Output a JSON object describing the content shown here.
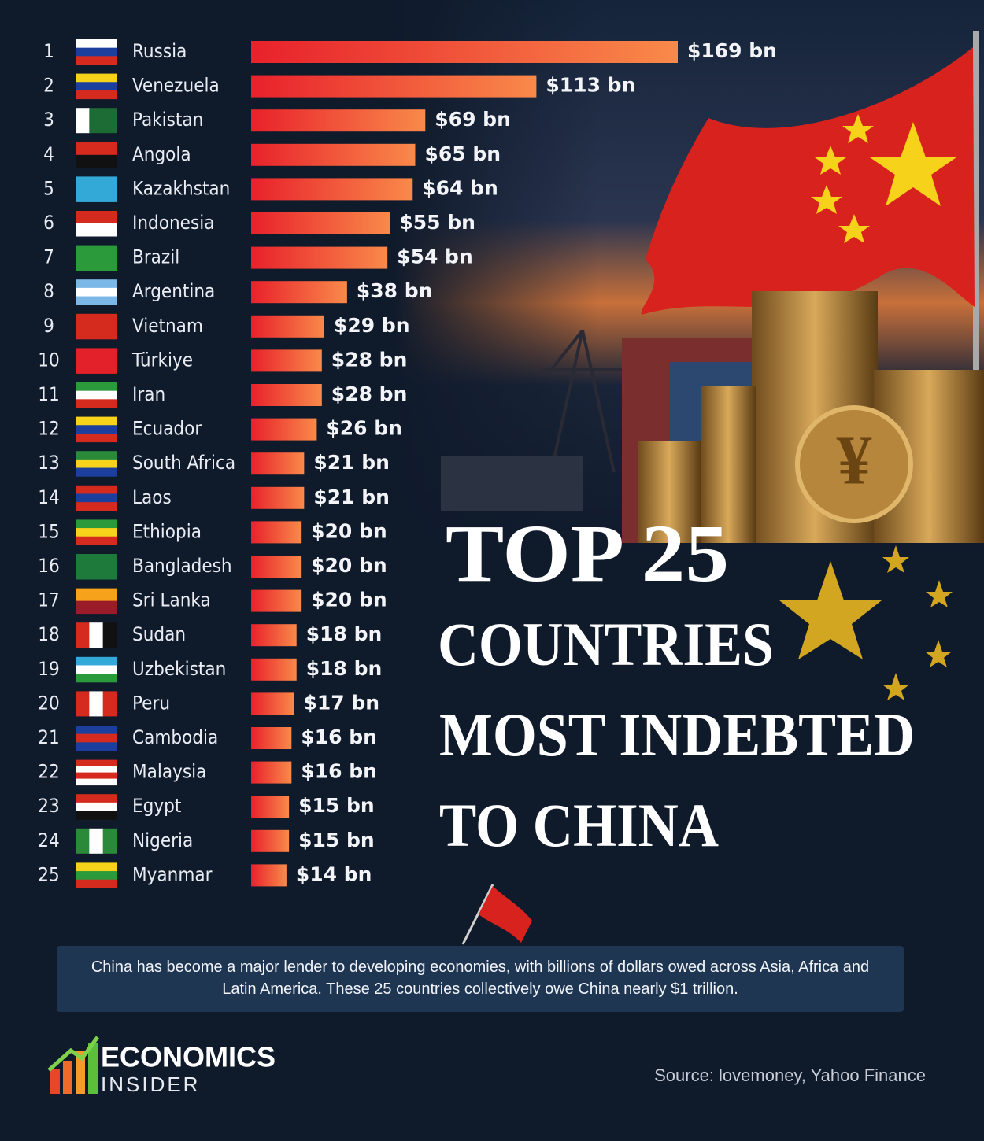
{
  "chart_data": {
    "type": "bar",
    "orientation": "horizontal",
    "title_lines": [
      "TOP 25",
      "COUNTRIES",
      "MOST INDEBTED",
      "TO CHINA"
    ],
    "ranks": [
      1,
      2,
      3,
      4,
      5,
      6,
      7,
      8,
      9,
      10,
      11,
      12,
      13,
      14,
      15,
      16,
      17,
      18,
      19,
      20,
      21,
      22,
      23,
      24,
      25
    ],
    "categories": [
      "Russia",
      "Venezuela",
      "Pakistan",
      "Angola",
      "Kazakhstan",
      "Indonesia",
      "Brazil",
      "Argentina",
      "Vietnam",
      "Türkiye",
      "Iran",
      "Ecuador",
      "South Africa",
      "Laos",
      "Ethiopia",
      "Bangladesh",
      "Sri Lanka",
      "Sudan",
      "Uzbekistan",
      "Peru",
      "Cambodia",
      "Malaysia",
      "Egypt",
      "Nigeria",
      "Myanmar"
    ],
    "values": [
      169,
      113,
      69,
      65,
      64,
      55,
      54,
      38,
      29,
      28,
      28,
      26,
      21,
      21,
      20,
      20,
      20,
      18,
      18,
      17,
      16,
      16,
      15,
      15,
      14
    ],
    "value_labels": [
      "$169 bn",
      "$113 bn",
      "$69 bn",
      "$65 bn",
      "$64 bn",
      "$55 bn",
      "$54 bn",
      "$38 bn",
      "$29 bn",
      "$28 bn",
      "$28 bn",
      "$26 bn",
      "$21 bn",
      "$21 bn",
      "$20 bn",
      "$20 bn",
      "$20 bn",
      "$18 bn",
      "$18 bn",
      "$17 bn",
      "$16 bn",
      "$16 bn",
      "$15 bn",
      "$15 bn",
      "$14 bn"
    ],
    "color": "#e8212b",
    "note": "China has become a major lender to developing economies, with billions of dollars owed across Asia, Africa and Latin America. These 25 countries collectively owe China nearly $1 trillion.",
    "source": "Source: lovemoney, Yahoo Finance",
    "logo": {
      "line1": "ECONOMICS",
      "line2": "INSIDER"
    }
  }
}
